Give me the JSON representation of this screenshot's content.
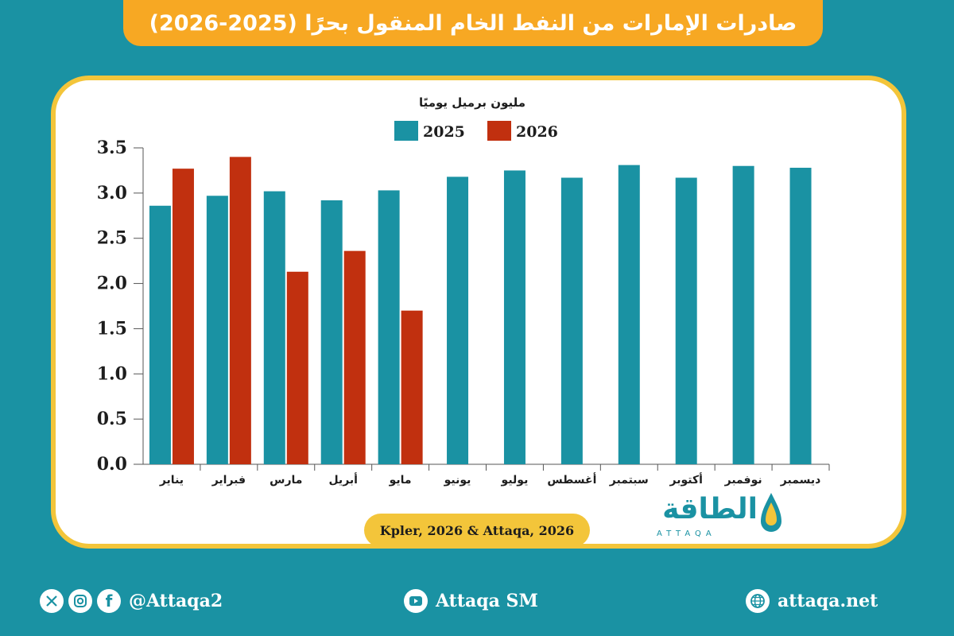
{
  "title": "صادرات الإمارات من النفط الخام المنقول بحرًا (2025-2026)",
  "chart_data": {
    "type": "bar",
    "ylabel": "مليون برميل يوميًا",
    "ylim": [
      0,
      3.5
    ],
    "yticks": [
      "0.0",
      "0.5",
      "1.0",
      "1.5",
      "2.0",
      "2.5",
      "3.0",
      "3.5"
    ],
    "categories": [
      "يناير",
      "فبراير",
      "مارس",
      "أبريل",
      "مايو",
      "يونيو",
      "يوليو",
      "أغسطس",
      "سبتمبر",
      "أكتوبر",
      "نوفمبر",
      "ديسمبر"
    ],
    "series": [
      {
        "name": "2025",
        "color": "#1a92a3",
        "values": [
          2.86,
          2.97,
          3.02,
          2.92,
          3.03,
          3.18,
          3.25,
          3.17,
          3.31,
          3.17,
          3.3,
          3.28
        ]
      },
      {
        "name": "2026",
        "color": "#c1300f",
        "values": [
          3.27,
          3.4,
          2.13,
          2.36,
          1.7,
          null,
          null,
          null,
          null,
          null,
          null,
          null
        ]
      }
    ],
    "legend_position": "top-center",
    "grid": false
  },
  "source": "Kpler, 2026 & Attaqa, 2026",
  "logo": {
    "arabic": "الطاقة",
    "latin": "ATTAQA"
  },
  "footer": {
    "social_handle": "@Attaqa2",
    "youtube_label": "Attaqa SM",
    "website": "attaqa.net"
  },
  "icons": [
    "x-icon",
    "instagram-icon",
    "facebook-icon",
    "youtube-icon",
    "globe-icon"
  ]
}
